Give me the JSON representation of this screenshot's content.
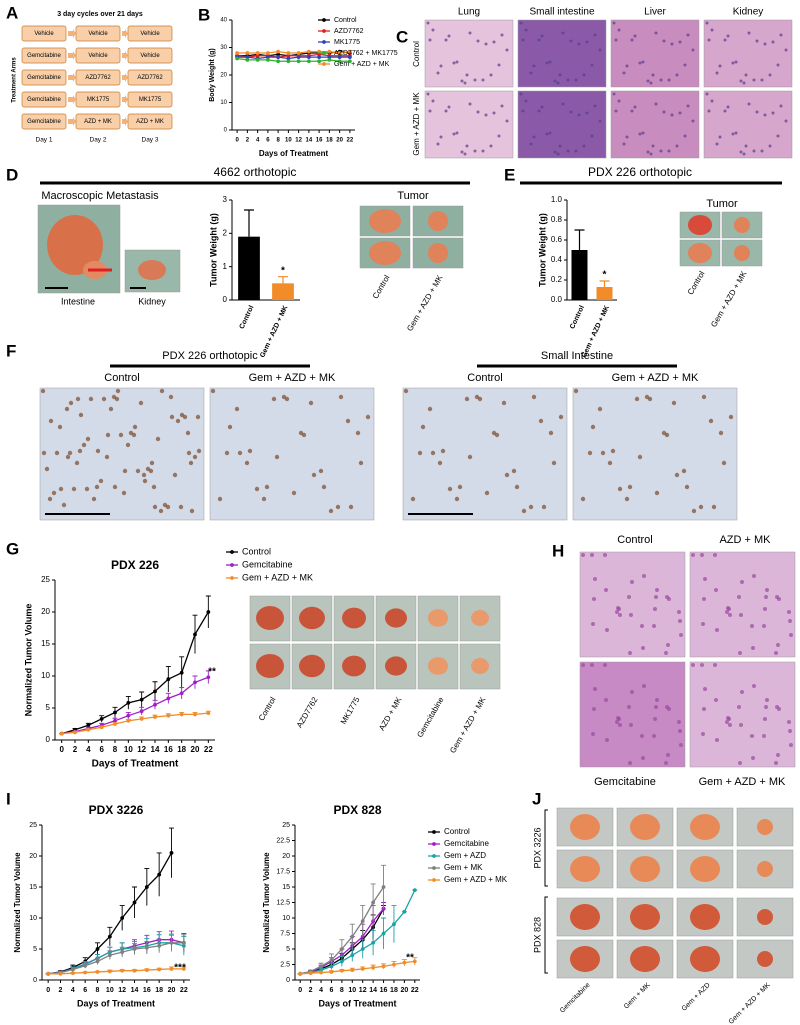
{
  "panel_letters": [
    "A",
    "B",
    "C",
    "D",
    "E",
    "F",
    "G",
    "H",
    "I",
    "J"
  ],
  "panel_a": {
    "title": "3 day cycles over 21 days",
    "axis_label": "Treatment Arms",
    "rows": [
      [
        "Vehicle",
        "Vehicle",
        "Vehicle"
      ],
      [
        "Gemcitabine",
        "Vehicle",
        "Vehicle"
      ],
      [
        "Gemcitabine",
        "AZD7762",
        "AZD7762"
      ],
      [
        "Gemcitabine",
        "MK1775",
        "MK1775"
      ],
      [
        "Gemcitabine",
        "AZD + MK",
        "AZD + MK"
      ]
    ],
    "days": [
      "Day 1",
      "Day 2",
      "Day 3"
    ]
  },
  "panel_c": {
    "columns": [
      "Lung",
      "Small intestine",
      "Liver",
      "Kidney"
    ],
    "rows": [
      "Control",
      "Gem + AZD + MK"
    ]
  },
  "panel_d": {
    "title": "4662 orthotopic",
    "metastasis_title": "Macroscopic Metastasis",
    "organs": [
      "Intestine",
      "Kidney"
    ],
    "tumor_title": "Tumor",
    "tumor_labels": [
      "Control",
      "Gem + AZD + MK"
    ]
  },
  "panel_e": {
    "title": "PDX 226 orthotopic",
    "tumor_title": "Tumor",
    "tumor_labels": [
      "Control",
      "Gem + AZD + MK"
    ]
  },
  "panel_f": {
    "groups": [
      {
        "title": "PDX 226 orthotopic",
        "labels": [
          "Control",
          "Gem + AZD + MK"
        ]
      },
      {
        "title": "Small Intestine",
        "labels": [
          "Control",
          "Gem + AZD + MK"
        ]
      }
    ]
  },
  "panel_g": {
    "photo_labels": [
      "Control",
      "AZD7762",
      "MK1775",
      "AZD + MK",
      "Gemcitabine",
      "Gem + AZD + MK"
    ]
  },
  "panel_h": {
    "labels": [
      "Control",
      "AZD + MK",
      "Gemcitabine",
      "Gem + AZD + MK"
    ]
  },
  "panel_j": {
    "rows": [
      "PDX 3226",
      "PDX 828"
    ],
    "columns": [
      "Gemcitabine",
      "Gem + MK",
      "Gem + AZD",
      "Gem + AZD + MK"
    ]
  },
  "chart_data": [
    {
      "type": "line",
      "xlabel": "Days of Treatment",
      "ylabel": "Body Weight (g)",
      "x": [
        0,
        2,
        4,
        6,
        8,
        10,
        12,
        14,
        16,
        18,
        20,
        22
      ],
      "xlim": [
        -1,
        23
      ],
      "xticks": [
        0,
        2,
        4,
        6,
        8,
        10,
        12,
        14,
        16,
        18,
        20,
        22
      ],
      "ylim": [
        0,
        40
      ],
      "yticks": [
        0,
        10,
        20,
        30,
        40
      ],
      "legend": "top-right",
      "series": [
        {
          "name": "Control",
          "color": "#000000",
          "values": [
            27,
            27,
            27.5,
            27,
            27.5,
            27,
            27.5,
            28,
            28,
            28,
            28.5,
            28
          ]
        },
        {
          "name": "AZD7762",
          "color": "#e02020",
          "values": [
            27,
            26.5,
            27,
            27,
            26.5,
            27,
            27,
            27,
            27.5,
            27,
            27,
            27
          ]
        },
        {
          "name": "MK1775",
          "color": "#3040c0",
          "values": [
            26.5,
            26.5,
            26,
            26.5,
            26.5,
            26,
            26.5,
            26.5,
            26.5,
            26.5,
            26.5,
            26.5
          ]
        },
        {
          "name": "AZD7762 + MK1775",
          "color": "#30b030",
          "values": [
            26,
            25.5,
            25.5,
            25.5,
            25,
            25,
            25,
            25,
            25,
            25.5,
            25,
            25
          ]
        },
        {
          "name": "Gem + AZD + MK",
          "color": "#f28c28",
          "values": [
            28,
            28,
            28,
            28,
            28.5,
            28,
            28,
            28.5,
            28.5,
            28.5,
            28,
            28.5
          ]
        }
      ]
    },
    {
      "type": "bar",
      "ylabel": "Tumor Weight (g)",
      "categories": [
        "Control",
        "Gem + AZD + MK"
      ],
      "values": [
        1.9,
        0.5
      ],
      "errors": [
        0.8,
        0.2
      ],
      "colors": [
        "#000000",
        "#f28c28"
      ],
      "ylim": [
        0,
        3
      ],
      "yticks": [
        0,
        1,
        2,
        3
      ],
      "annotations": [
        "*"
      ]
    },
    {
      "type": "bar",
      "ylabel": "Tumor Weight (g)",
      "categories": [
        "Control",
        "Gem + AZD + MK"
      ],
      "values": [
        0.5,
        0.13
      ],
      "errors": [
        0.2,
        0.06
      ],
      "colors": [
        "#000000",
        "#f28c28"
      ],
      "ylim": [
        0,
        1
      ],
      "yticks": [
        {
          "value": 0,
          "label": "0.0"
        },
        0.2,
        0.4,
        0.6,
        0.8,
        {
          "value": 1,
          "label": "1.0"
        }
      ],
      "annotations": [
        "*"
      ]
    },
    {
      "type": "line",
      "title": "PDX 226",
      "xlabel": "Days of Treatment",
      "ylabel": "Normalized Tumor Volume",
      "x": [
        0,
        2,
        4,
        6,
        8,
        10,
        12,
        14,
        16,
        18,
        20,
        22
      ],
      "xlim": [
        -1,
        23
      ],
      "xticks": [
        0,
        2,
        4,
        6,
        8,
        10,
        12,
        14,
        16,
        18,
        20,
        22
      ],
      "ylim": [
        0,
        25
      ],
      "yticks": [
        0,
        5,
        10,
        15,
        20,
        25
      ],
      "legend": "outside-right",
      "annotations": [
        "**"
      ],
      "series": [
        {
          "name": "Control",
          "color": "#000000",
          "values": [
            1,
            1.6,
            2.3,
            3.3,
            4.3,
            5.8,
            6.3,
            7.6,
            9.5,
            10.5,
            16.5,
            20
          ],
          "errors": [
            0,
            0.2,
            0.3,
            0.5,
            0.8,
            1,
            1.2,
            1.5,
            2,
            2.5,
            3,
            2.5
          ]
        },
        {
          "name": "Gemcitabine",
          "color": "#a020c8",
          "values": [
            1,
            1.3,
            1.8,
            2.3,
            3,
            3.8,
            4.5,
            5.5,
            6.5,
            7.3,
            9,
            9.8
          ],
          "errors": [
            0,
            0.1,
            0.2,
            0.3,
            0.4,
            0.5,
            0.6,
            0.7,
            0.8,
            0.9,
            1,
            1
          ]
        },
        {
          "name": "Gem + AZD + MK",
          "color": "#f28c28",
          "values": [
            1,
            1.2,
            1.6,
            2,
            2.5,
            3,
            3.3,
            3.6,
            3.8,
            4,
            4,
            4.2
          ],
          "errors": [
            0,
            0.1,
            0.1,
            0.2,
            0.2,
            0.2,
            0.3,
            0.3,
            0.3,
            0.3,
            0.3,
            0.3
          ]
        }
      ]
    },
    {
      "type": "line",
      "title": "PDX 3226",
      "xlabel": "Days of Treatment",
      "ylabel": "Normalized Tumor Volume",
      "x": [
        0,
        2,
        4,
        6,
        8,
        10,
        12,
        14,
        16,
        18,
        20,
        22
      ],
      "xlim": [
        -1,
        23
      ],
      "xticks": [
        0,
        2,
        4,
        6,
        8,
        10,
        12,
        14,
        16,
        18,
        20,
        22
      ],
      "ylim": [
        0,
        25
      ],
      "yticks": [
        0,
        5,
        10,
        15,
        20,
        25
      ],
      "legend": "none",
      "annotations": [
        "***"
      ],
      "series": [
        {
          "name": "Control",
          "color": "#000000",
          "values": [
            1,
            1.3,
            2,
            3,
            5,
            7,
            10,
            12.5,
            15,
            17,
            20.5,
            null
          ],
          "errors": [
            0,
            0.2,
            0.4,
            0.6,
            1,
            1.5,
            2,
            2.5,
            3,
            3.5,
            4,
            null
          ]
        },
        {
          "name": "Gemcitabine",
          "color": "#a020c8",
          "values": [
            1,
            1.2,
            1.8,
            2.5,
            3.5,
            4.5,
            5,
            5.5,
            6,
            6.5,
            6.5,
            6
          ],
          "errors": [
            0,
            0.2,
            0.3,
            0.4,
            0.6,
            0.8,
            1,
            1,
            1.2,
            1.3,
            1.4,
            1.5
          ]
        },
        {
          "name": "Gem + AZD",
          "color": "#1aa3a3",
          "values": [
            1,
            1.2,
            1.8,
            2.6,
            3.5,
            4.5,
            5,
            5.2,
            5.5,
            6,
            6,
            5.5
          ],
          "errors": [
            0,
            0.2,
            0.3,
            0.4,
            0.6,
            0.8,
            1,
            1,
            1.2,
            1.3,
            1.4,
            1.5
          ]
        },
        {
          "name": "Gem + MK",
          "color": "#808080",
          "values": [
            1,
            1.2,
            1.7,
            2.3,
            3,
            4,
            4.5,
            5,
            5.2,
            5.5,
            6,
            6
          ],
          "errors": [
            0,
            0.2,
            0.3,
            0.4,
            0.5,
            0.7,
            0.8,
            0.9,
            1,
            1.1,
            1.2,
            1.3
          ]
        },
        {
          "name": "Gem + AZD + MK",
          "color": "#f28c28",
          "values": [
            1,
            1,
            1.1,
            1.2,
            1.3,
            1.4,
            1.5,
            1.5,
            1.6,
            1.7,
            1.8,
            1.8
          ],
          "errors": [
            0,
            0.1,
            0.1,
            0.1,
            0.1,
            0.2,
            0.2,
            0.2,
            0.2,
            0.2,
            0.3,
            0.3
          ]
        }
      ]
    },
    {
      "type": "line",
      "title": "PDX 828",
      "xlabel": "Days of Treatment",
      "ylabel": "Normalized Tumor Volume",
      "x": [
        0,
        2,
        4,
        6,
        8,
        10,
        12,
        14,
        16,
        18,
        20,
        22
      ],
      "xlim": [
        -1,
        23
      ],
      "xticks": [
        0,
        2,
        4,
        6,
        8,
        10,
        12,
        14,
        16,
        18,
        20,
        22
      ],
      "ylim": [
        0,
        25
      ],
      "yticks": [
        0,
        2.5,
        5,
        7.5,
        10,
        12.5,
        15,
        17.5,
        20,
        22.5,
        25
      ],
      "legend": "outside-right",
      "annotations": [
        "**"
      ],
      "series": [
        {
          "name": "Control",
          "color": "#000000",
          "values": [
            1,
            1.3,
            1.8,
            2.5,
            3.5,
            5,
            6.5,
            8.5,
            11.5,
            null,
            null,
            null
          ],
          "errors": [
            0,
            0.2,
            0.3,
            0.5,
            0.8,
            1,
            1.5,
            2,
            0.5,
            null,
            null,
            null
          ]
        },
        {
          "name": "Gemcitabine",
          "color": "#a020c8",
          "values": [
            1,
            1.3,
            2,
            3,
            4,
            5.5,
            7,
            9.5,
            11.5,
            null,
            null,
            null
          ],
          "errors": [
            0,
            0.2,
            0.4,
            0.6,
            1,
            1.5,
            2,
            2.5,
            1,
            null,
            null,
            null
          ]
        },
        {
          "name": "Gem + AZD",
          "color": "#1aa3a3",
          "values": [
            1,
            1.2,
            1.6,
            2.2,
            3,
            4,
            5,
            6,
            7.5,
            9,
            11,
            14.5
          ],
          "errors": [
            0,
            0.2,
            0.3,
            0.5,
            0.8,
            1,
            1.5,
            2,
            2.5,
            3,
            0,
            0
          ]
        },
        {
          "name": "Gem + MK",
          "color": "#808080",
          "values": [
            1,
            1.4,
            2.2,
            3.2,
            5,
            7,
            9.5,
            12.5,
            15,
            null,
            null,
            null
          ],
          "errors": [
            0,
            0.2,
            0.5,
            1,
            1.5,
            2,
            2.5,
            3,
            3.5,
            null,
            null,
            null
          ]
        },
        {
          "name": "Gem + AZD + MK",
          "color": "#f28c28",
          "values": [
            1,
            1.1,
            1.2,
            1.3,
            1.5,
            1.6,
            1.8,
            2,
            2.2,
            2.5,
            2.8,
            3
          ],
          "errors": [
            0,
            0.1,
            0.1,
            0.2,
            0.2,
            0.3,
            0.3,
            0.4,
            0.4,
            0.5,
            0.5,
            0.6
          ]
        }
      ]
    }
  ]
}
